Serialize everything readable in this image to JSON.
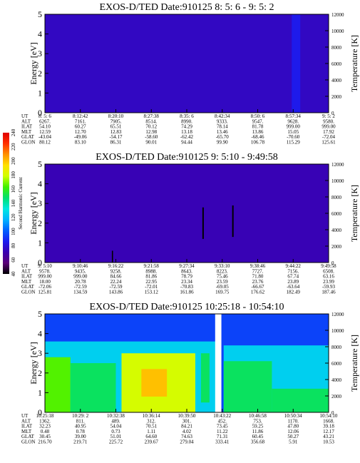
{
  "panels": [
    {
      "title": "EXOS-D/TED   Date:910125  8: 5: 6 - 9: 5: 2",
      "ylabel": "Energy [eV]",
      "y2label": "Temperature [K]",
      "yticks": [
        "0",
        "1",
        "2",
        "3",
        "4",
        "5"
      ],
      "y2ticks": [
        "0",
        "2000",
        "4000",
        "6000",
        "8000",
        "10000",
        "12000"
      ],
      "table": {
        "rows": [
          {
            "label": "UT",
            "values": [
              "8: 5: 6",
              "8:12:42",
              "8:20:10",
              "8:27:38",
              "8:35: 6",
              "8:42:34",
              "8:50: 6",
              "8:57:34",
              "9: 5: 2"
            ]
          },
          {
            "label": "ALT",
            "values": [
              "6267.",
              "7161.",
              "7905.",
              "8514.",
              "8990.",
              "9333.",
              "9547.",
              "9628.",
              "9580."
            ]
          },
          {
            "label": "ILAT",
            "values": [
              "54.10",
              "60.27",
              "65.51",
              "70.12",
              "74.29",
              "78.14",
              "81.78",
              "999.00",
              "999.00"
            ]
          },
          {
            "label": "MLT",
            "values": [
              "12.59",
              "12.70",
              "12.83",
              "12.98",
              "13.18",
              "13.46",
              "13.86",
              "15.05",
              "17.92"
            ]
          },
          {
            "label": "GLAT",
            "values": [
              "-43.04",
              "-49.06",
              "-54.17",
              "-58.60",
              "-62.42",
              "-65.70",
              "-68.46",
              "-70.60",
              "-72.04"
            ]
          },
          {
            "label": "GLON",
            "values": [
              "80.12",
              "83.10",
              "86.31",
              "90.01",
              "94.44",
              "99.90",
              "106.78",
              "115.29",
              "125.61"
            ]
          }
        ]
      }
    },
    {
      "title": "EXOS-D/TED   Date:910125   9: 5:10 - 9:49:58",
      "ylabel": "Energy [eV]",
      "y2label": "Temperature [K]",
      "yticks": [
        "0",
        "1",
        "2",
        "3",
        "4",
        "5"
      ],
      "y2ticks": [
        "0",
        "2000",
        "4000",
        "6000",
        "8000",
        "10000",
        "12000"
      ],
      "table": {
        "rows": [
          {
            "label": "UT",
            "values": [
              "9: 5:10",
              "9:10:46",
              "9:16:22",
              "9:21:58",
              "9:27:34",
              "9:33:10",
              "9:38:46",
              "9:44:22",
              "9:49:58"
            ]
          },
          {
            "label": "ALT",
            "values": [
              "9578.",
              "9435.",
              "9258.",
              "8988.",
              "8643.",
              "8223.",
              "7727.",
              "7156.",
              "6508."
            ]
          },
          {
            "label": "ILAT",
            "values": [
              "999.00",
              "999.00",
              "84.66",
              "81.86",
              "78.79",
              "75.46",
              "71.80",
              "67.74",
              "63.16"
            ]
          },
          {
            "label": "MLT",
            "values": [
              "18.00",
              "20.78",
              "22.24",
              "22.95",
              "23.34",
              "23.59",
              "23.76",
              "23.89",
              "23.99"
            ]
          },
          {
            "label": "GLAT",
            "values": [
              "-72.06",
              "-72.59",
              "-72.59",
              "-72.01",
              "-70.83",
              "-69.05",
              "-66.67",
              "-63.64",
              "-59.93"
            ]
          },
          {
            "label": "GLON",
            "values": [
              "125.81",
              "134.59",
              "143.86",
              "153.12",
              "161.86",
              "169.75",
              "176.62",
              "182.49",
              "187.46"
            ]
          }
        ]
      }
    },
    {
      "title": "EXOS-D/TED   Date:910125   10:25:18 - 10:54:10",
      "ylabel": "Energy [eV]",
      "y2label": "Temperature [K]",
      "yticks": [
        "0",
        "1",
        "2",
        "3",
        "4",
        "5"
      ],
      "y2ticks": [
        "0",
        "2000",
        "4000",
        "6000",
        "8000",
        "10000",
        "12000"
      ],
      "table": {
        "rows": [
          {
            "label": "UT",
            "values": [
              "10:25:18",
              "10:29: 2",
              "10:32:38",
              "10:36:14",
              "10:39:50",
              "10:43:22",
              "10:46:58",
              "10:50:34",
              "10:54:10"
            ]
          },
          {
            "label": "ALT",
            "values": [
              "1362.",
              "811.",
              "489.",
              "312.",
              "301.",
              "452.",
              "753.",
              "1170.",
              "1668."
            ]
          },
          {
            "label": "ILAT",
            "values": [
              "32.23",
              "40.95",
              "54.04",
              "70.51",
              "84.21",
              "73.45",
              "59.25",
              "47.80",
              "39.18"
            ]
          },
          {
            "label": "MLT",
            "values": [
              "0.48",
              "0.78",
              "0.73",
              "1.11",
              "4.02",
              "11.22",
              "11.86",
              "12.06",
              "12.17"
            ]
          },
          {
            "label": "GLAT",
            "values": [
              "30.45",
              "39.00",
              "51.01",
              "64.60",
              "74.63",
              "71.31",
              "60.45",
              "50.27",
              "43.21"
            ]
          },
          {
            "label": "GLON",
            "values": [
              "216.70",
              "219.71",
              "225.72",
              "239.67",
              "279.04",
              "333.41",
              "356.68",
              "5.91",
              "10.53"
            ]
          }
        ]
      }
    }
  ],
  "colorbar": {
    "label": "Second Harmonic Current",
    "ticks": [
      "40",
      "60",
      "80",
      "100",
      "120",
      "140",
      "160",
      "180",
      "200",
      "220",
      "240"
    ],
    "stops": [
      "#000000",
      "#5a0078",
      "#3a00b0",
      "#1c1cf0",
      "#0060ff",
      "#00b4ff",
      "#00e8e0",
      "#00e070",
      "#40f000",
      "#d0ff00",
      "#ffe000",
      "#ff9000",
      "#ff3000",
      "#e00000"
    ]
  },
  "chart_data": [
    {
      "type": "heatmap",
      "title": "EXOS-D/TED   Date:910125  8: 5: 6 - 9: 5: 2",
      "x": [
        "8: 5: 6",
        "8:12:42",
        "8:20:10",
        "8:27:38",
        "8:35: 6",
        "8:42:34",
        "8:50: 6",
        "8:57:34",
        "9: 5: 2"
      ],
      "ylabel": "Energy [eV]",
      "ylim": [
        0,
        5
      ],
      "y2label": "Temperature [K]",
      "y2lim": [
        0,
        12000
      ],
      "regions": [
        {
          "x_from": 0.0,
          "x_to": 0.13,
          "e_from": 1.3,
          "e_to": 3.6,
          "level": 95
        },
        {
          "x_from": 0.0,
          "x_to": 1.0,
          "e_from": 0.0,
          "e_to": 5.0,
          "level": 75
        },
        {
          "x_from": 0.87,
          "x_to": 0.9,
          "e_from": 0.0,
          "e_to": 5.0,
          "level": 85
        }
      ]
    },
    {
      "type": "heatmap",
      "title": "EXOS-D/TED   Date:910125   9: 5:10 - 9:49:58",
      "x": [
        "9: 5:10",
        "9:10:46",
        "9:16:22",
        "9:21:58",
        "9:27:34",
        "9:33:10",
        "9:38:46",
        "9:44:22",
        "9:49:58"
      ],
      "ylabel": "Energy [eV]",
      "ylim": [
        0,
        5
      ],
      "y2label": "Temperature [K]",
      "y2lim": [
        0,
        12000
      ],
      "regions": [
        {
          "x_from": 0.0,
          "x_to": 1.0,
          "e_from": 0.0,
          "e_to": 5.0,
          "level": 72
        },
        {
          "x_from": 0.555,
          "x_to": 0.56,
          "e_from": 1.2,
          "e_to": 2.8,
          "level": 40
        },
        {
          "x_from": 0.66,
          "x_to": 0.665,
          "e_from": 1.3,
          "e_to": 2.9,
          "level": 40
        },
        {
          "x_from": 0.236,
          "x_to": 0.24,
          "e_from": 0.0,
          "e_to": 0.6,
          "level": 40
        }
      ]
    },
    {
      "type": "heatmap",
      "title": "EXOS-D/TED   Date:910125   10:25:18 - 10:54:10",
      "x": [
        "10:25:18",
        "10:29: 2",
        "10:32:38",
        "10:36:14",
        "10:39:50",
        "10:43:22",
        "10:46:58",
        "10:50:34",
        "10:54:10"
      ],
      "ylabel": "Energy [eV]",
      "ylim": [
        0,
        5
      ],
      "y2label": "Temperature [K]",
      "y2lim": [
        0,
        12000
      ],
      "regions": [
        {
          "x_from": 0.0,
          "x_to": 1.0,
          "e_from": 0.0,
          "e_to": 5.0,
          "level": 95
        },
        {
          "x_from": 0.0,
          "x_to": 0.62,
          "e_from": 0.0,
          "e_to": 3.6,
          "level": 125
        },
        {
          "x_from": 0.0,
          "x_to": 0.09,
          "e_from": 0.0,
          "e_to": 2.8,
          "level": 165
        },
        {
          "x_from": 0.09,
          "x_to": 0.25,
          "e_from": 0.0,
          "e_to": 2.5,
          "level": 150
        },
        {
          "x_from": 0.27,
          "x_to": 0.53,
          "e_from": 0.0,
          "e_to": 3.0,
          "level": 180
        },
        {
          "x_from": 0.34,
          "x_to": 0.43,
          "e_from": 0.8,
          "e_to": 2.2,
          "level": 200
        },
        {
          "x_from": 0.55,
          "x_to": 0.58,
          "e_from": 0.5,
          "e_to": 3.0,
          "level": 150
        },
        {
          "x_from": 0.63,
          "x_to": 1.0,
          "e_from": 0.0,
          "e_to": 3.4,
          "level": 125
        },
        {
          "x_from": 0.63,
          "x_to": 0.8,
          "e_from": 0.0,
          "e_to": 2.6,
          "level": 150
        },
        {
          "x_from": 0.8,
          "x_to": 1.0,
          "e_from": 0.0,
          "e_to": 1.2,
          "level": 150
        },
        {
          "x_from": 0.6,
          "x_to": 0.622,
          "e_from": 0.0,
          "e_to": 5.0,
          "level": null
        }
      ]
    }
  ]
}
